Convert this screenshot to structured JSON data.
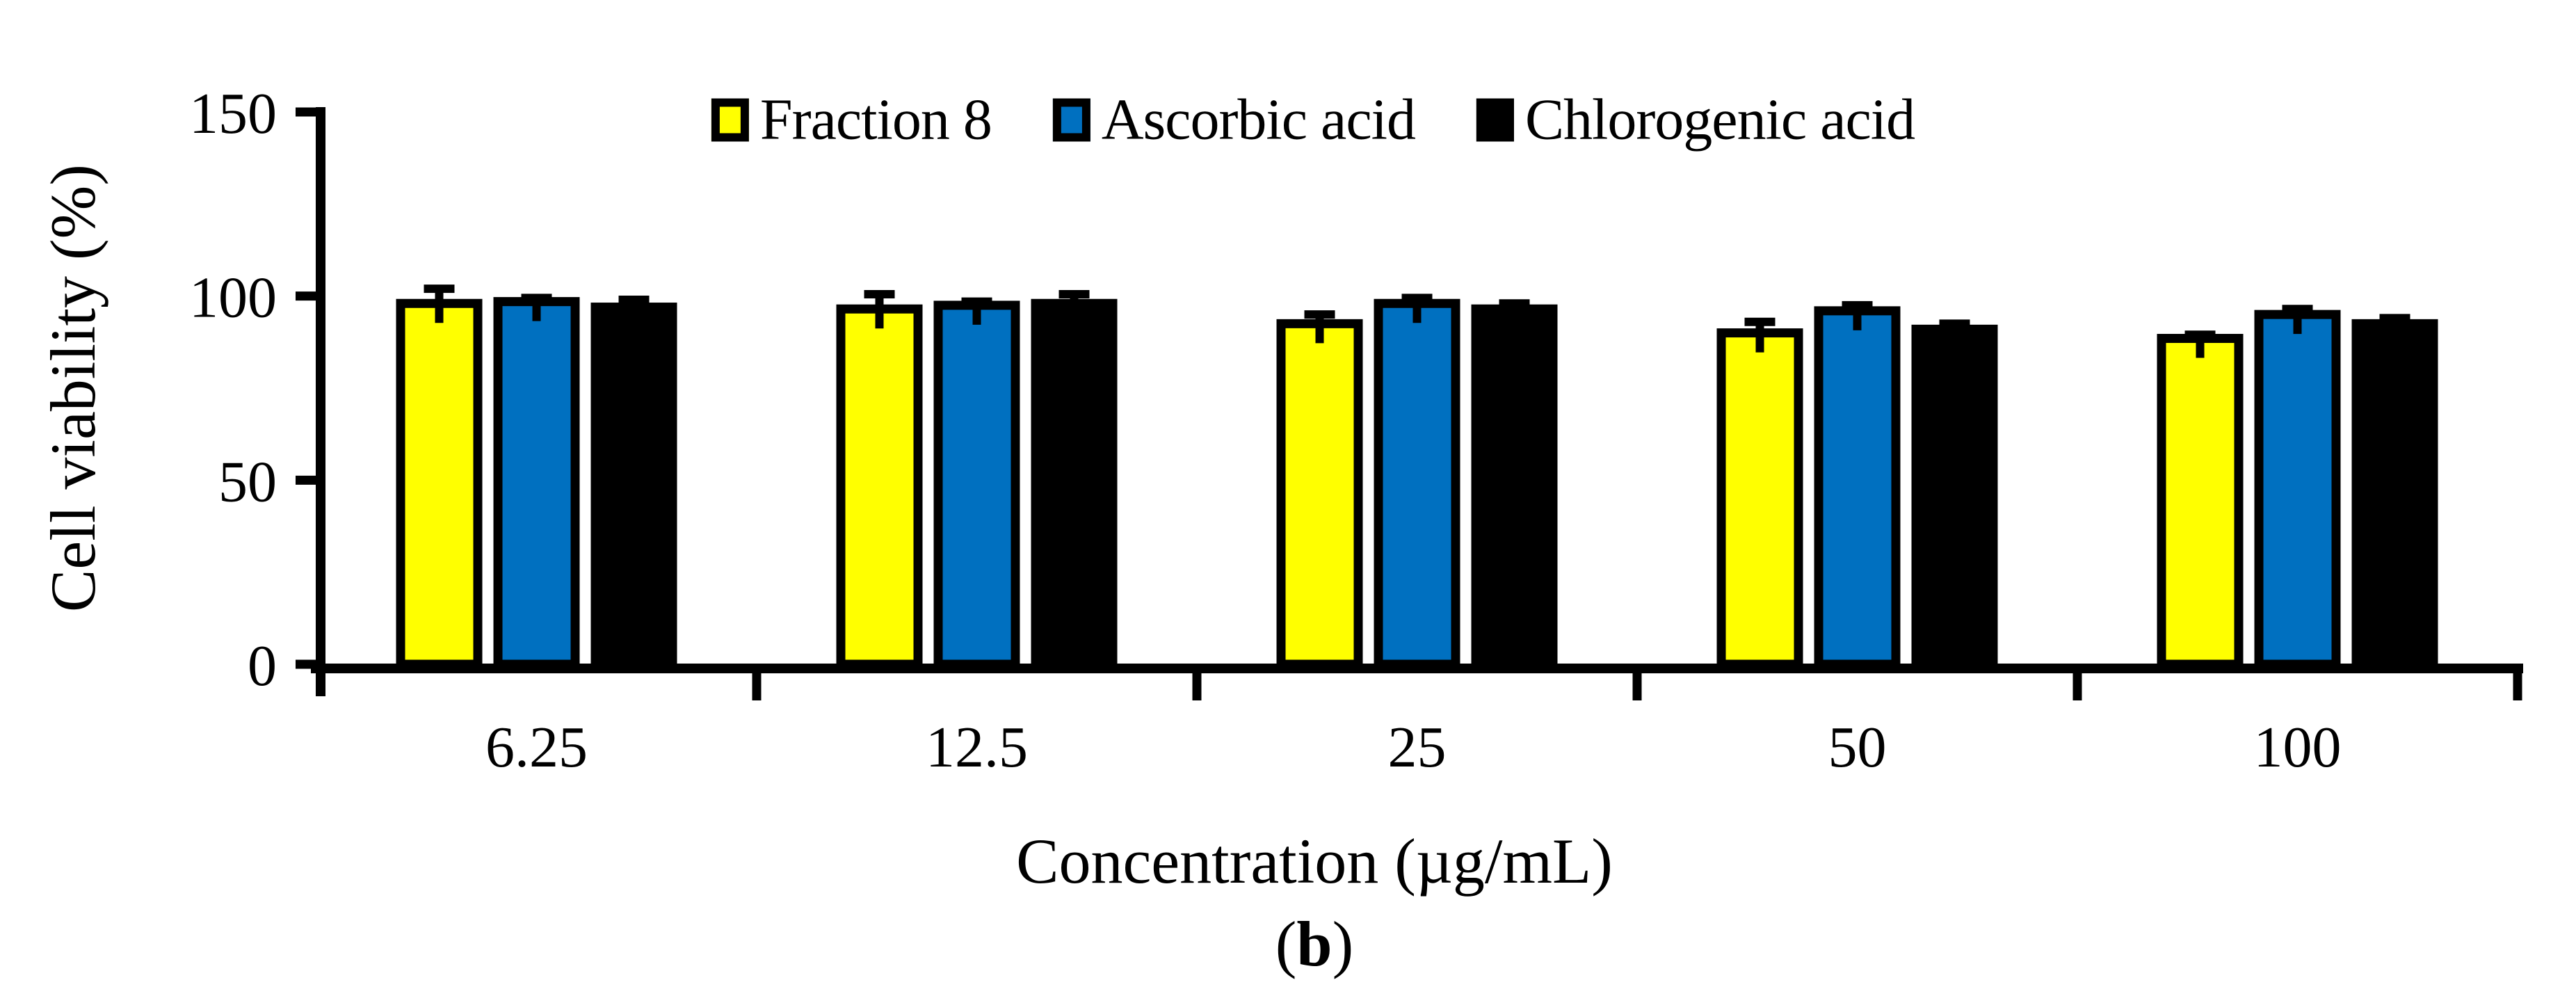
{
  "figure": {
    "caption_prefix": "(",
    "caption_bold": "b",
    "caption_suffix": ")"
  },
  "chart_data": {
    "type": "bar",
    "title": "",
    "xlabel": "Concentration (µg/mL)",
    "ylabel": "Cell viability (%)",
    "ylim": [
      0,
      150
    ],
    "yticks": [
      0,
      50,
      100,
      150
    ],
    "ytick_labels": [
      "0",
      "50",
      "100",
      "150"
    ],
    "grid": false,
    "legend_position": "top-center",
    "bar_outline_color": "#000000",
    "categories": [
      "6.25",
      "12.5",
      "25",
      "50",
      "100"
    ],
    "series": [
      {
        "name": "Fraction 8",
        "color": "#FFFF00",
        "values": [
          98,
          96.5,
          92.5,
          90,
          88.5
        ],
        "errors": [
          4,
          4,
          2.5,
          3,
          1
        ]
      },
      {
        "name": "Ascorbic acid",
        "color": "#0070C0",
        "values": [
          98.5,
          97.5,
          98,
          96,
          95
        ],
        "errors": [
          1,
          1,
          1.5,
          1.5,
          1.5
        ]
      },
      {
        "name": "Chlorogenic acid",
        "color": "#000000",
        "values": [
          97,
          98,
          96.5,
          91,
          92.5
        ],
        "errors": [
          2,
          2.5,
          1.5,
          1.5,
          1.5
        ]
      }
    ]
  }
}
